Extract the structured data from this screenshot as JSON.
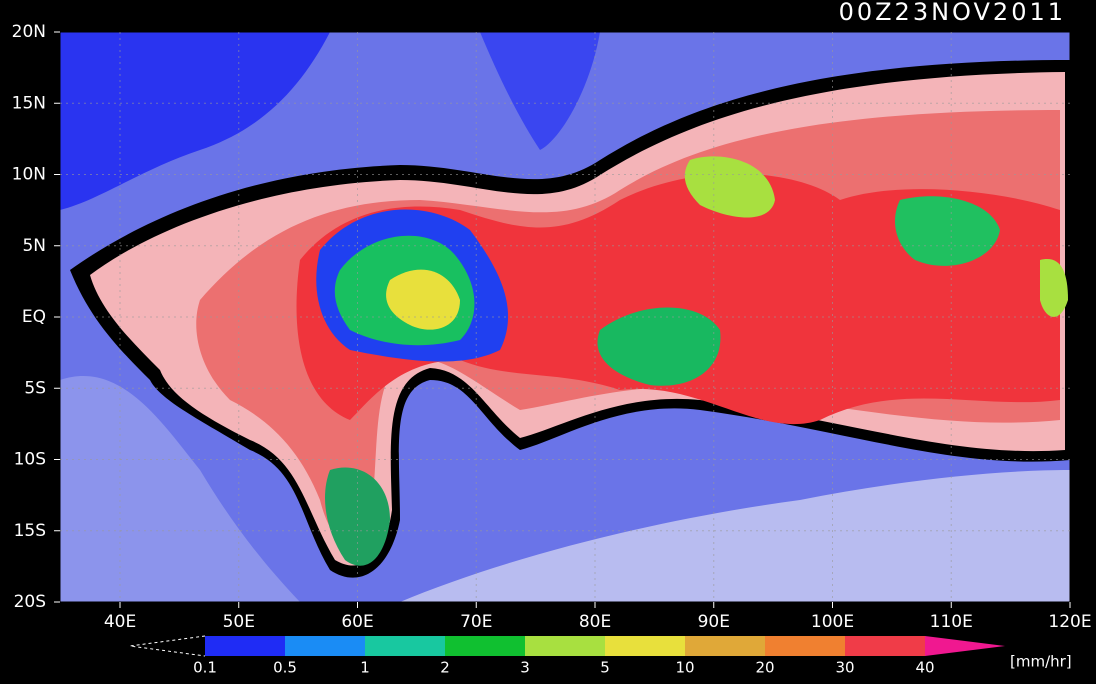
{
  "title": "00Z23NOV2011",
  "lat_labels": [
    "20N",
    "15N",
    "10N",
    "5N",
    "EQ",
    "5S",
    "10S",
    "15S",
    "20S"
  ],
  "lon_labels": [
    "40E",
    "50E",
    "60E",
    "70E",
    "80E",
    "90E",
    "100E",
    "110E",
    "120E"
  ],
  "colorbar": {
    "labels": [
      "0.1",
      "0.5",
      "1",
      "2",
      "3",
      "5",
      "10",
      "20",
      "30",
      "40"
    ],
    "colors": [
      "#1f2cf5",
      "#1a8cf5",
      "#18c8a0",
      "#10c030",
      "#a8e040",
      "#e8e03c",
      "#e0a838",
      "#f08030",
      "#f03c48"
    ],
    "over_color": "#f01890",
    "unit": "[mm/hr]"
  }
}
